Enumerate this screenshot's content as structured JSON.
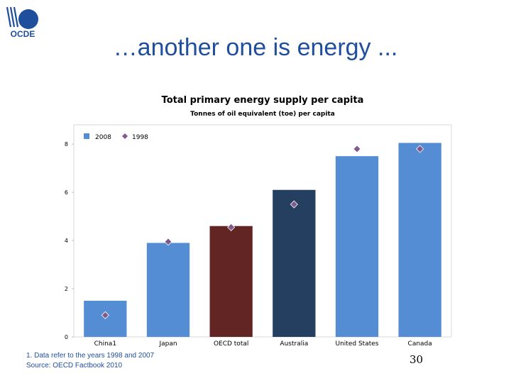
{
  "slide": {
    "title": "…another one is energy ...",
    "logo_text": "OCDE",
    "footnote": "1. Data refer to the years 1998 and 2007",
    "source": "Source: OECD Factbook 2010",
    "page_number": "30"
  },
  "chart_data": {
    "type": "bar",
    "title": "Total primary energy supply per capita",
    "subtitle": "Tonnes of oil equivalent (toe) per capita",
    "xlabel": "",
    "ylabel": "",
    "ylim": [
      0,
      8.8
    ],
    "yticks": [
      0,
      2,
      4,
      6,
      8
    ],
    "grid": false,
    "legend_position": "top-left",
    "categories": [
      "China1",
      "Japan",
      "OECD total",
      "Australia",
      "United States",
      "Canada"
    ],
    "series": [
      {
        "name": "2008",
        "type": "bar",
        "values": [
          1.5,
          3.9,
          4.6,
          6.1,
          7.5,
          8.05
        ],
        "color": "#548dd4",
        "bar_colors": [
          "#548dd4",
          "#548dd4",
          "#632523",
          "#243f60",
          "#548dd4",
          "#548dd4"
        ]
      },
      {
        "name": "1998",
        "type": "marker",
        "marker": "diamond",
        "values": [
          0.9,
          3.95,
          4.55,
          5.5,
          7.8,
          7.8
        ],
        "color": "#7f5a8a"
      }
    ]
  }
}
